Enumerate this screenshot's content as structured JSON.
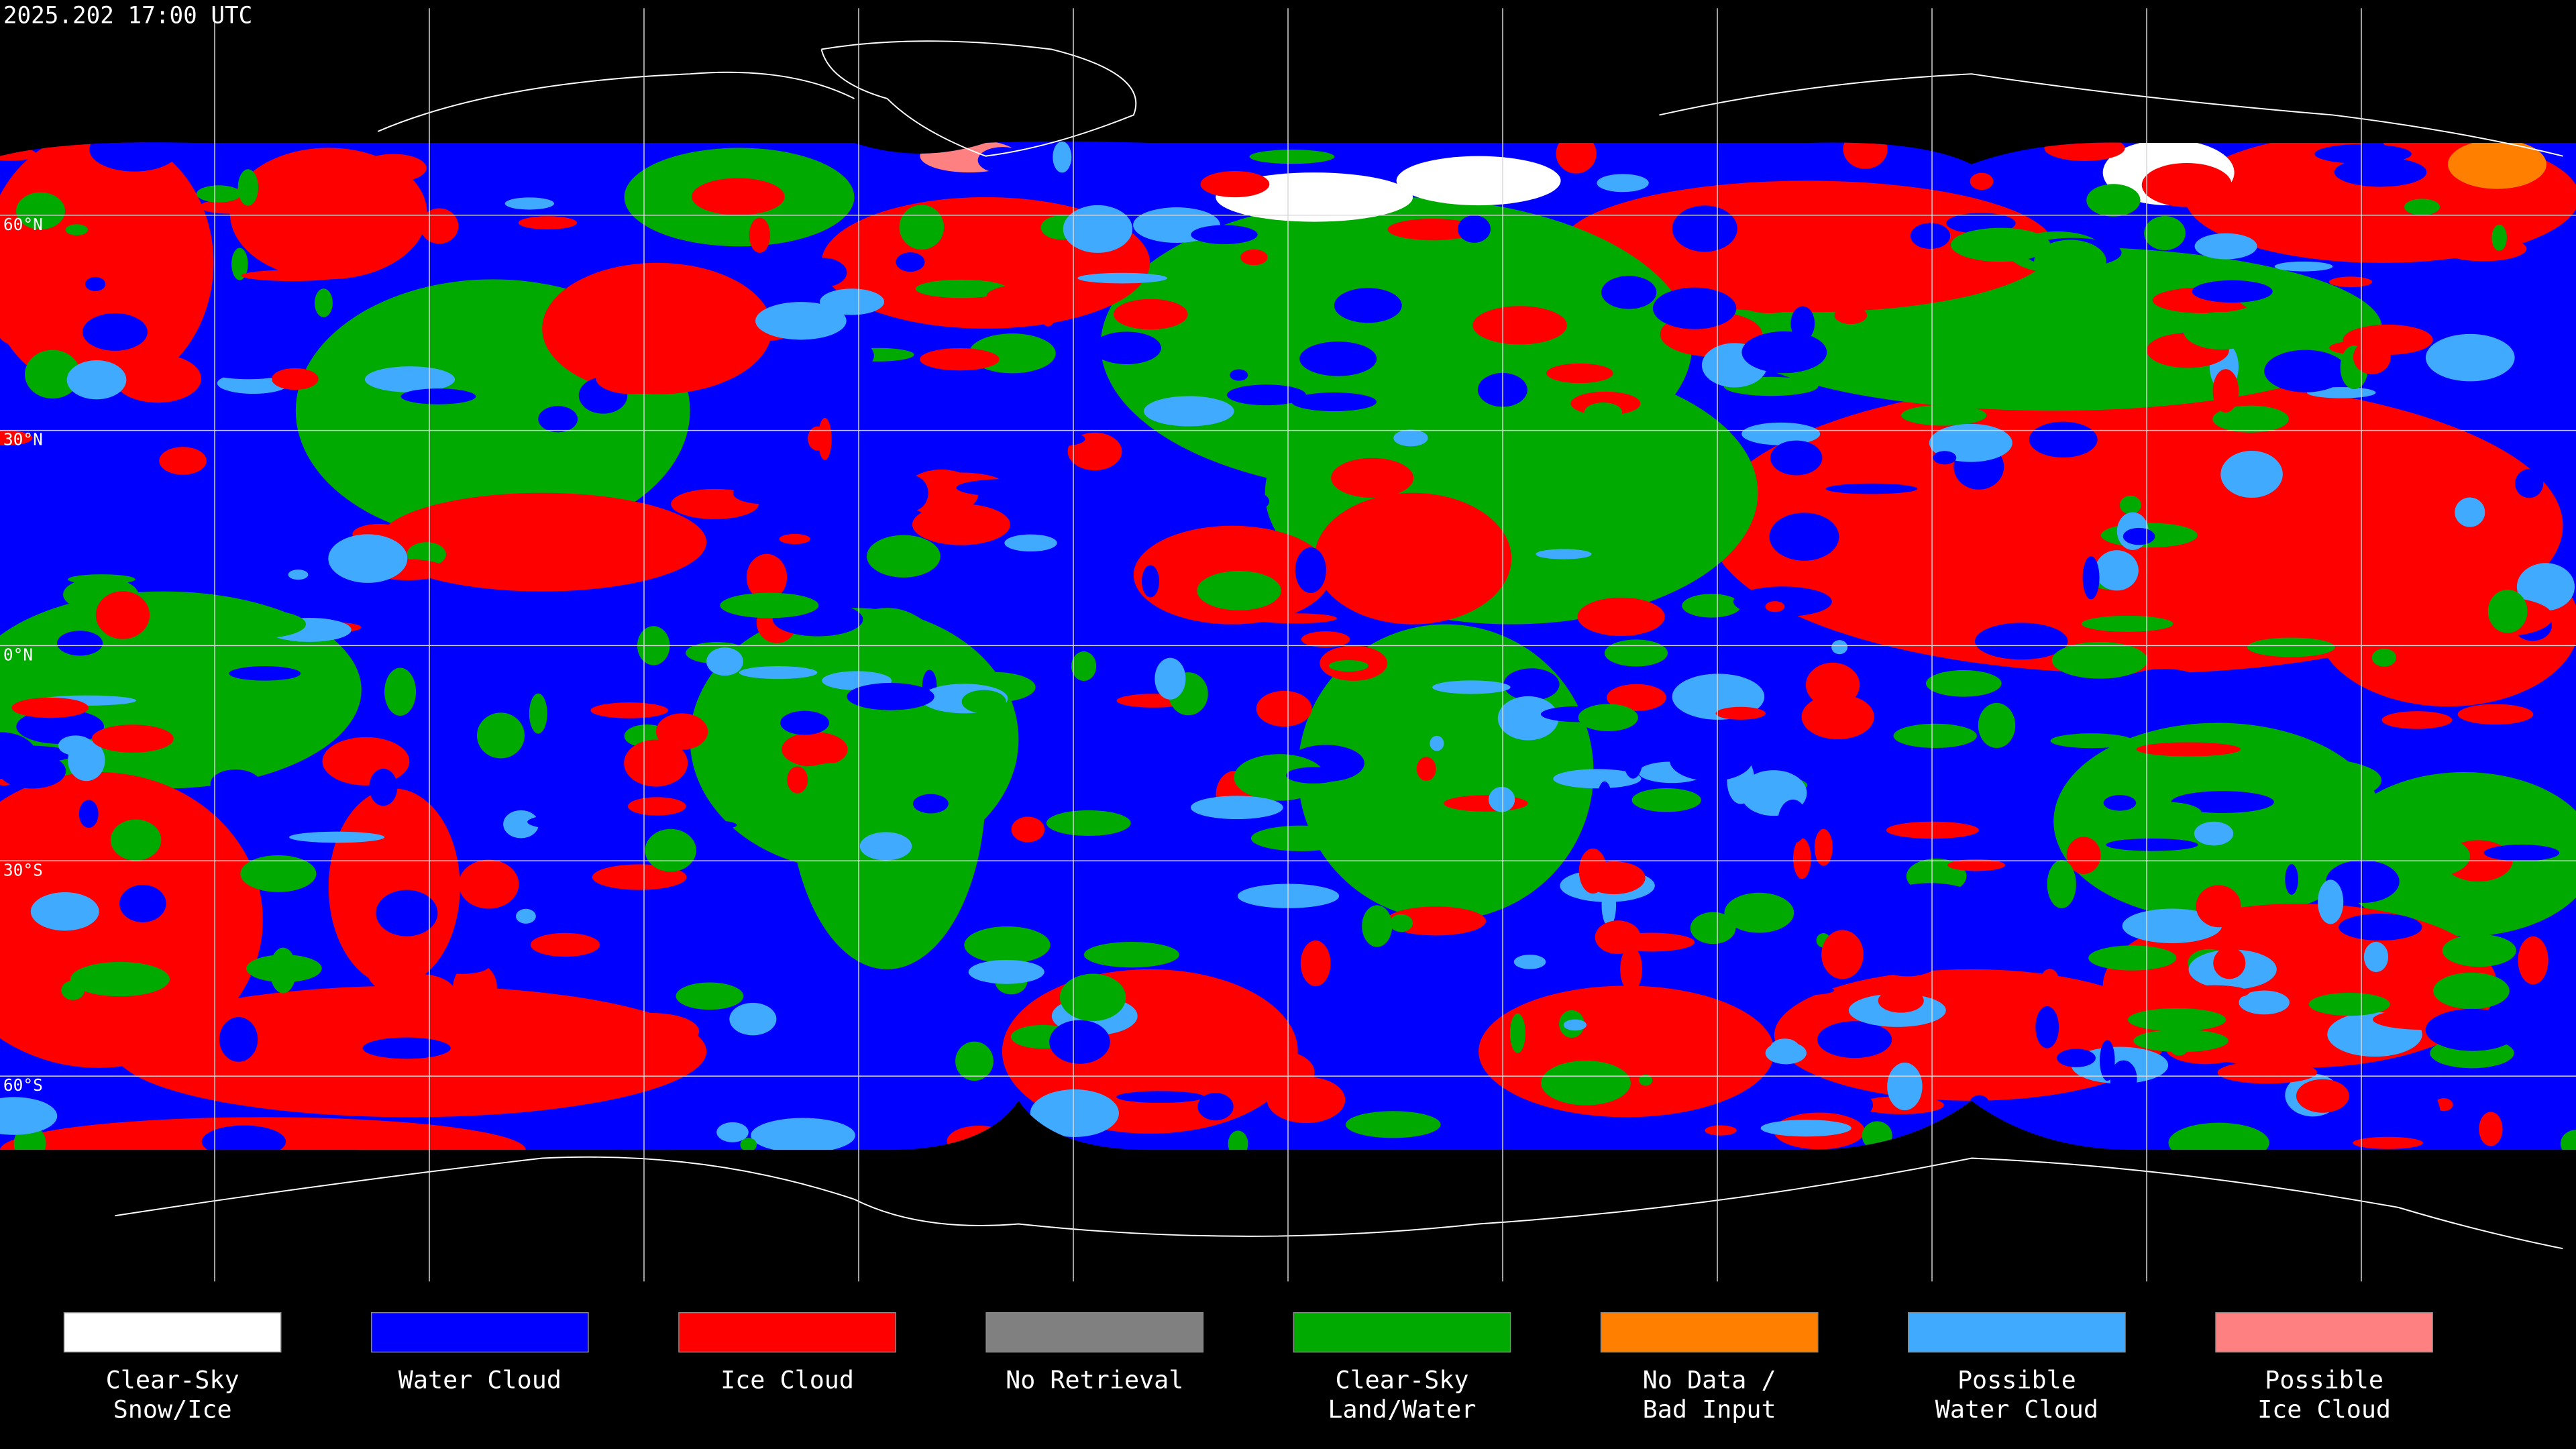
{
  "header": {
    "timestamp": "2025.202 17:00 UTC"
  },
  "map": {
    "latitude_labels": [
      "60°N",
      "30°N",
      "0°N",
      "30°S",
      "60°S"
    ]
  },
  "legend": {
    "items": [
      {
        "label": [
          "Clear-Sky",
          "Snow/Ice"
        ],
        "color": "#ffffff"
      },
      {
        "label": [
          "Water Cloud"
        ],
        "color": "#0000ff"
      },
      {
        "label": [
          "Ice Cloud"
        ],
        "color": "#ff0000"
      },
      {
        "label": [
          "No Retrieval"
        ],
        "color": "#808080"
      },
      {
        "label": [
          "Clear-Sky",
          "Land/Water"
        ],
        "color": "#00aa00"
      },
      {
        "label": [
          "No Data /",
          "Bad Input"
        ],
        "color": "#ff8000"
      },
      {
        "label": [
          "Possible",
          "Water Cloud"
        ],
        "color": "#40aaff"
      },
      {
        "label": [
          "Possible",
          "Ice Cloud"
        ],
        "color": "#ff8080"
      }
    ]
  }
}
